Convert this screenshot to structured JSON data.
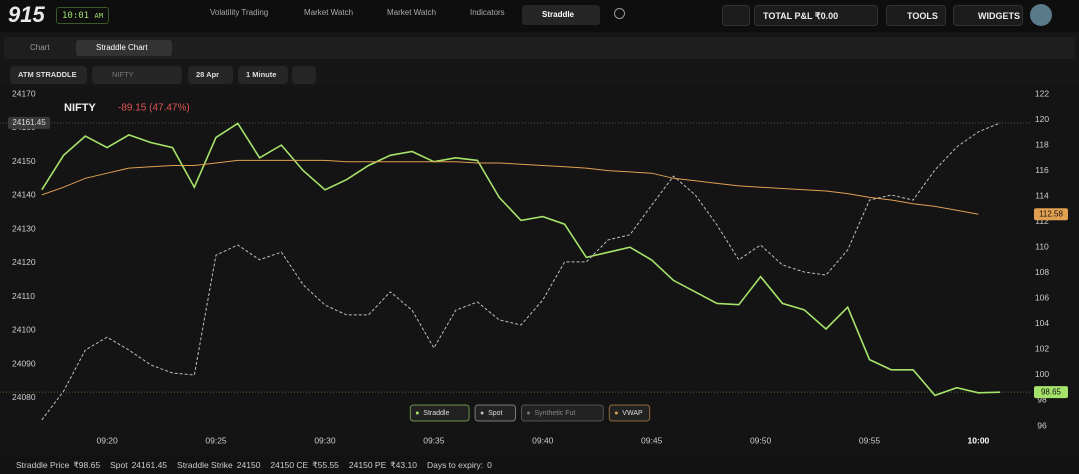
{
  "header": {
    "logo": "915",
    "clock": "10:01",
    "clock_suffix": "AM",
    "tabs": [
      "Volatility Trading",
      "Market Watch",
      "Market Watch",
      "Indicators",
      "Straddle"
    ],
    "pnl": "TOTAL P&L ₹0.00",
    "tools": "TOOLS",
    "widgets": "WIDGETS"
  },
  "subtabs": [
    "Chart",
    "Straddle Chart"
  ],
  "toolbar": {
    "mode": "ATM STRADDLE",
    "search": "NIFTY",
    "expiry": "28 Apr",
    "interval": "1 Minute"
  },
  "chart_data": {
    "type": "line",
    "title": "NIFTY",
    "change": "-89.15 (47.47%)",
    "x": [
      "09:17",
      "09:18",
      "09:19",
      "09:20",
      "09:21",
      "09:22",
      "09:23",
      "09:24",
      "09:25",
      "09:26",
      "09:27",
      "09:28",
      "09:29",
      "09:30",
      "09:31",
      "09:32",
      "09:33",
      "09:34",
      "09:35",
      "09:36",
      "09:37",
      "09:38",
      "09:39",
      "09:40",
      "09:41",
      "09:42",
      "09:43",
      "09:44",
      "09:45",
      "09:46",
      "09:47",
      "09:48",
      "09:49",
      "09:50",
      "09:51",
      "09:52",
      "09:53",
      "09:54",
      "09:55",
      "09:56",
      "09:57",
      "09:58",
      "09:59",
      "10:00",
      "10:01"
    ],
    "xlim": [
      "09:16",
      "10:02"
    ],
    "xticks": [
      "09:20",
      "09:25",
      "09:30",
      "09:35",
      "09:40",
      "09:45",
      "09:50",
      "09:55",
      "10:00"
    ],
    "ylim": [
      24071.7,
      24170
    ],
    "yticks": [
      24080,
      24090,
      24100,
      24110,
      24120,
      24130,
      24140,
      24150,
      24160,
      24170
    ],
    "y2lim": [
      96,
      122
    ],
    "y2ticks": [
      96,
      98,
      100,
      102,
      104,
      106,
      108,
      110,
      112,
      114,
      116,
      118,
      120,
      122
    ],
    "series": [
      {
        "name": "Straddle",
        "color": "#a6e36a",
        "axis": "y2",
        "values": [
          114.5,
          117.2,
          118.7,
          117.8,
          118.8,
          118.2,
          117.8,
          114.7,
          118.6,
          119.7,
          117,
          118,
          116,
          114.5,
          115.3,
          116.4,
          117.2,
          117.5,
          116.7,
          117,
          116.8,
          113.9,
          112.1,
          112.4,
          111.8,
          109.2,
          109.6,
          110,
          109,
          107.4,
          106.5,
          105.6,
          105.5,
          107.7,
          105.6,
          105.1,
          103.6,
          105.3,
          101.2,
          100.4,
          100.4,
          98.4,
          99,
          98.6,
          98.65
        ]
      },
      {
        "name": "Spot",
        "color": "#bdbdbd",
        "values": [
          24073.5,
          24082,
          24094.2,
          24098,
          24094.2,
          24089.8,
          24087.4,
          24086.8,
          24122.3,
          24125.3,
          24120.9,
          24123.2,
          24113.5,
          24107.5,
          24104.6,
          24104.6,
          24111.4,
          24106,
          24094.8,
          24106,
          24108.4,
          24103.1,
          24101.6,
          24109,
          24120.3,
          24120.3,
          24126.8,
          24128.3,
          24137.1,
          24145.7,
          24140.1,
          24131.2,
          24120.9,
          24125.3,
          24119.4,
          24117.3,
          24116.4,
          24123.8,
          24138.6,
          24140.1,
          24138.6,
          24147.5,
          24154.3,
          24158.8,
          24161.45
        ]
      },
      {
        "name": "Synthetic Fut",
        "color": "#777777",
        "values": [
          null,
          null,
          null,
          null,
          null,
          null,
          null,
          null,
          null,
          null,
          null,
          null,
          null,
          null,
          null,
          null,
          null,
          null,
          null,
          null,
          null,
          null,
          null,
          null,
          null,
          null,
          null,
          null,
          null,
          null,
          null,
          null,
          null,
          null,
          null,
          null,
          null,
          null,
          null,
          null,
          null,
          null,
          null,
          null,
          null
        ]
      },
      {
        "name": "VWAP",
        "color": "#e0a050",
        "axis": "y2",
        "values": [
          114.1,
          114.7,
          115.4,
          115.8,
          116.2,
          116.3,
          116.4,
          116.4,
          116.6,
          116.8,
          116.8,
          116.8,
          116.8,
          116.8,
          116.7,
          116.7,
          116.7,
          116.7,
          116.7,
          116.7,
          116.6,
          116.6,
          116.5,
          116.4,
          116.3,
          116.2,
          116.0,
          115.9,
          115.8,
          115.4,
          115.2,
          115.0,
          114.8,
          114.7,
          114.6,
          114.5,
          114.4,
          114.2,
          113.9,
          113.7,
          113.4,
          113.2,
          112.9,
          112.58,
          null
        ]
      }
    ]
  },
  "footer": [
    [
      "Straddle Price",
      "₹98.65"
    ],
    [
      "Spot",
      "24161.45"
    ],
    [
      "Straddle Strike",
      "24150"
    ],
    [
      "24150 CE",
      "₹55.55"
    ],
    [
      "24150 PE",
      "₹43.10"
    ],
    [
      "Days to expiry:",
      "0"
    ]
  ]
}
